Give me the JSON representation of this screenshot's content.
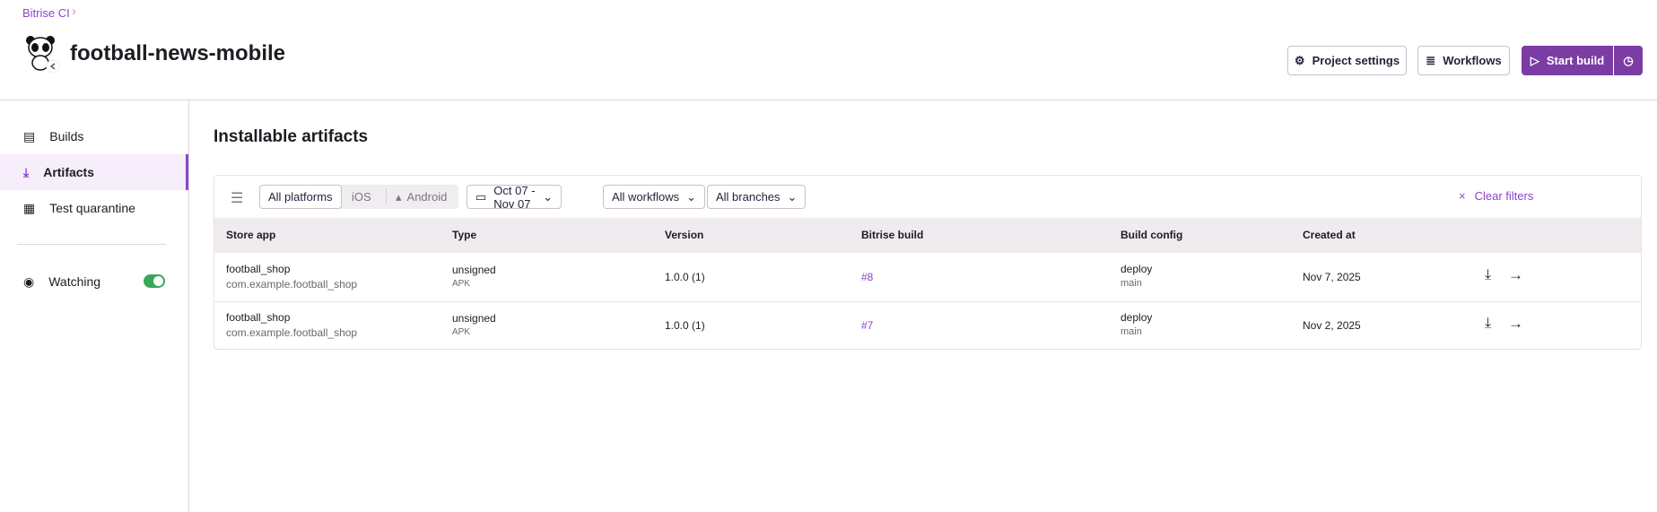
{
  "breadcrumb": {
    "root": "Bitrise CI"
  },
  "header": {
    "title": "football-news-mobile",
    "project_settings": "Project settings",
    "workflows": "Workflows",
    "start_build": "Start build"
  },
  "sidebar": {
    "items": [
      {
        "label": "Builds",
        "icon": "builds-icon"
      },
      {
        "label": "Artifacts",
        "icon": "download-icon",
        "active": true
      },
      {
        "label": "Test quarantine",
        "icon": "clipboard-icon"
      }
    ],
    "watching": {
      "label": "Watching",
      "on": true
    }
  },
  "main": {
    "title": "Installable artifacts",
    "filters": {
      "platforms": [
        "All platforms",
        "iOS",
        "Android"
      ],
      "selected_platform": "All platforms",
      "date_range": "Oct 07 - Nov 07",
      "workflows": "All workflows",
      "branches": "All branches",
      "clear": "Clear filters"
    },
    "columns": [
      "Store app",
      "Type",
      "Version",
      "Bitrise build",
      "Build config",
      "Created at"
    ],
    "rows": [
      {
        "app": "football_shop",
        "bundle": "com.example.football_shop",
        "type": "unsigned",
        "subtype": "APK",
        "version": "1.0.0 (1)",
        "build": "#8",
        "workflow": "deploy",
        "branch": "main",
        "created": "Nov 7, 2025"
      },
      {
        "app": "football_shop",
        "bundle": "com.example.football_shop",
        "type": "unsigned",
        "subtype": "APK",
        "version": "1.0.0 (1)",
        "build": "#7",
        "workflow": "deploy",
        "branch": "main",
        "created": "Nov 2, 2025"
      }
    ]
  },
  "colors": {
    "accent": "#7b3ca3",
    "link": "#8e44c9",
    "toggle": "#3aa65a"
  }
}
